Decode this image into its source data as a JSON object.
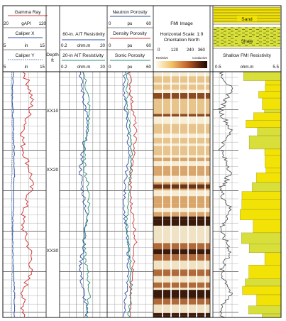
{
  "track1": {
    "gamma_ray": {
      "label": "Gamma Ray",
      "min": "20",
      "unit": "gAPI",
      "max": "120",
      "color": "#d23a3a"
    },
    "caliper_x": {
      "label": "Caliper X",
      "min": "5",
      "unit": "in",
      "max": "15",
      "color": "#2c4fa0"
    },
    "caliper_y": {
      "label": "Caliper Y",
      "min": "5",
      "unit": "in",
      "max": "15",
      "color": "#6a8fb8"
    }
  },
  "depth_track": {
    "header_line1": "Depth",
    "header_line2": "ft",
    "marks": [
      "XX10",
      "XX20",
      "XX30"
    ]
  },
  "track2": {
    "ait_60": {
      "label": "60-in. AIT Resistivity",
      "min": "0.2",
      "unit": "ohm.m",
      "max": "20",
      "color": "#2c4fa0"
    },
    "ait_20": {
      "label": "20-in AIT Resistivity",
      "min": "0.2",
      "unit": "ohm.m",
      "max": "20",
      "color": "#2a8f7a"
    }
  },
  "track3": {
    "neutron": {
      "label": "Neutron Porosity",
      "min": "0",
      "unit": "pu",
      "max": "60",
      "color": "#2c4fa0"
    },
    "density": {
      "label": "Density Porosity",
      "min": "0",
      "unit": "pu",
      "max": "60",
      "color": "#d23a3a"
    },
    "sonic": {
      "label": "Sonic Porosity",
      "min": "0",
      "unit": "pu",
      "max": "60",
      "color": "#2a8f7a"
    }
  },
  "fmi_track": {
    "title": "FMI Image",
    "scale": "Horizontal Scale: 1:9",
    "orientation": "Orientation North",
    "ticks": [
      "0",
      "120",
      "240",
      "360"
    ],
    "resistive": "Resistive",
    "conductive": "Conductive"
  },
  "track5": {
    "sand_label": "Sand",
    "shale_label": "Shale",
    "sand_color": "#f2e205",
    "shale_color": "#9a9a2a",
    "resistivity": {
      "label": "Shallow FMI Resistivity",
      "min": "0.5",
      "unit": "ohm.m",
      "max": "5.5"
    }
  }
}
